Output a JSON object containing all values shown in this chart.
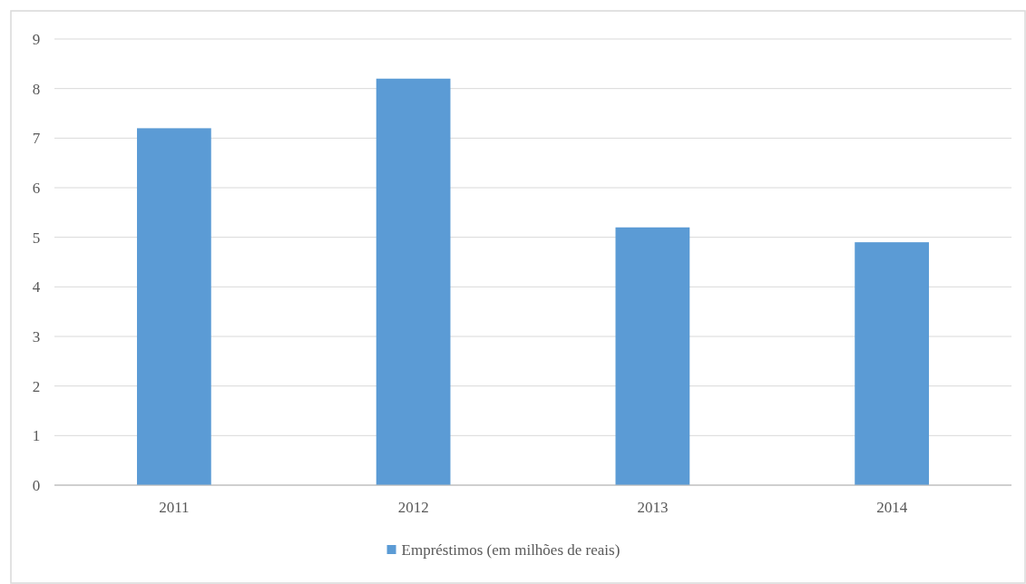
{
  "chart_data": {
    "type": "bar",
    "categories": [
      "2011",
      "2012",
      "2013",
      "2014"
    ],
    "series": [
      {
        "name": "Empréstimos (em milhões de reais)",
        "color": "#5b9bd5",
        "values": [
          7.2,
          8.2,
          5.2,
          4.9
        ]
      }
    ],
    "ylim": [
      0,
      9
    ],
    "yticks": [
      0,
      1,
      2,
      3,
      4,
      5,
      6,
      7,
      8,
      9
    ],
    "grid": "y",
    "legend": "bottom"
  }
}
